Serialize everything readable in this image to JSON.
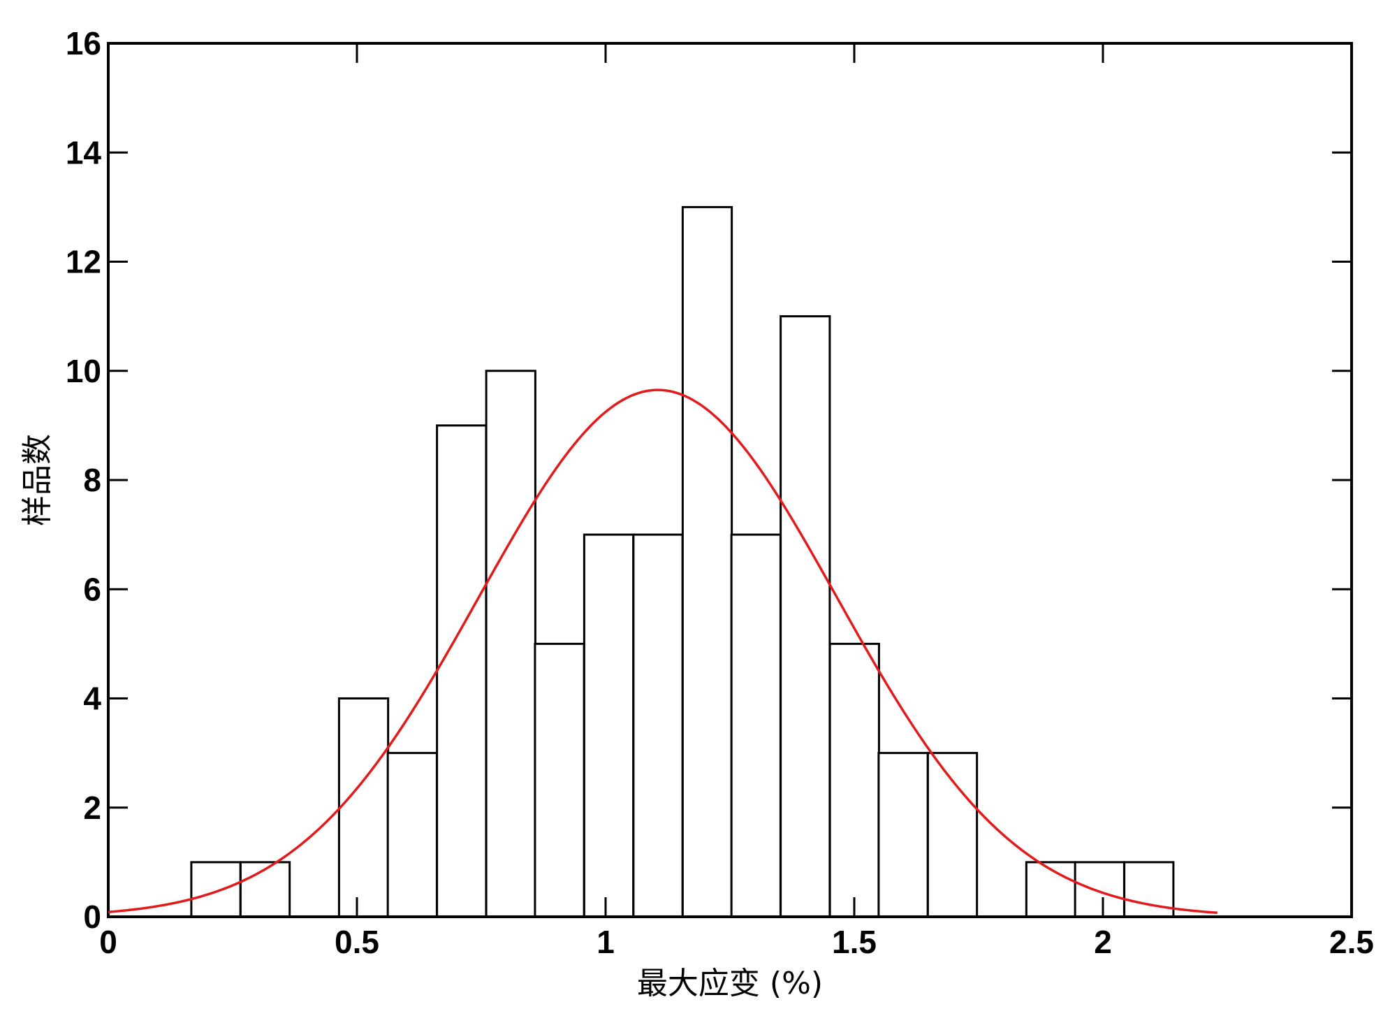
{
  "chart_data": {
    "type": "bar",
    "title": "",
    "xlabel": "最大应变 (%)",
    "ylabel": "样品数",
    "xlim": [
      0,
      2.5
    ],
    "ylim": [
      0,
      16
    ],
    "x_ticks": [
      "0",
      "0.5",
      "1",
      "1.5",
      "2",
      "2.5"
    ],
    "y_ticks": [
      "0",
      "2",
      "4",
      "6",
      "8",
      "10",
      "12",
      "14",
      "16"
    ],
    "bin_width": 0.0987,
    "bins": [
      {
        "x0": 0.167,
        "value": 1
      },
      {
        "x0": 0.266,
        "value": 1
      },
      {
        "x0": 0.365,
        "value": 0
      },
      {
        "x0": 0.464,
        "value": 4
      },
      {
        "x0": 0.562,
        "value": 3
      },
      {
        "x0": 0.661,
        "value": 9
      },
      {
        "x0": 0.76,
        "value": 10
      },
      {
        "x0": 0.858,
        "value": 5
      },
      {
        "x0": 0.957,
        "value": 7
      },
      {
        "x0": 1.056,
        "value": 7
      },
      {
        "x0": 1.155,
        "value": 13
      },
      {
        "x0": 1.253,
        "value": 7
      },
      {
        "x0": 1.352,
        "value": 11
      },
      {
        "x0": 1.451,
        "value": 5
      },
      {
        "x0": 1.549,
        "value": 3
      },
      {
        "x0": 1.648,
        "value": 3
      },
      {
        "x0": 1.747,
        "value": 0
      },
      {
        "x0": 1.846,
        "value": 1
      },
      {
        "x0": 1.944,
        "value": 1
      },
      {
        "x0": 2.043,
        "value": 1
      }
    ],
    "fit_curve": {
      "type": "normal",
      "mean": 1.105,
      "sd": 0.36,
      "peak": 9.65,
      "x_range": [
        0,
        2.23
      ],
      "color": "#e31a1c"
    },
    "bar_fill": "#ffffff",
    "bar_stroke": "#000000",
    "grid": false
  }
}
